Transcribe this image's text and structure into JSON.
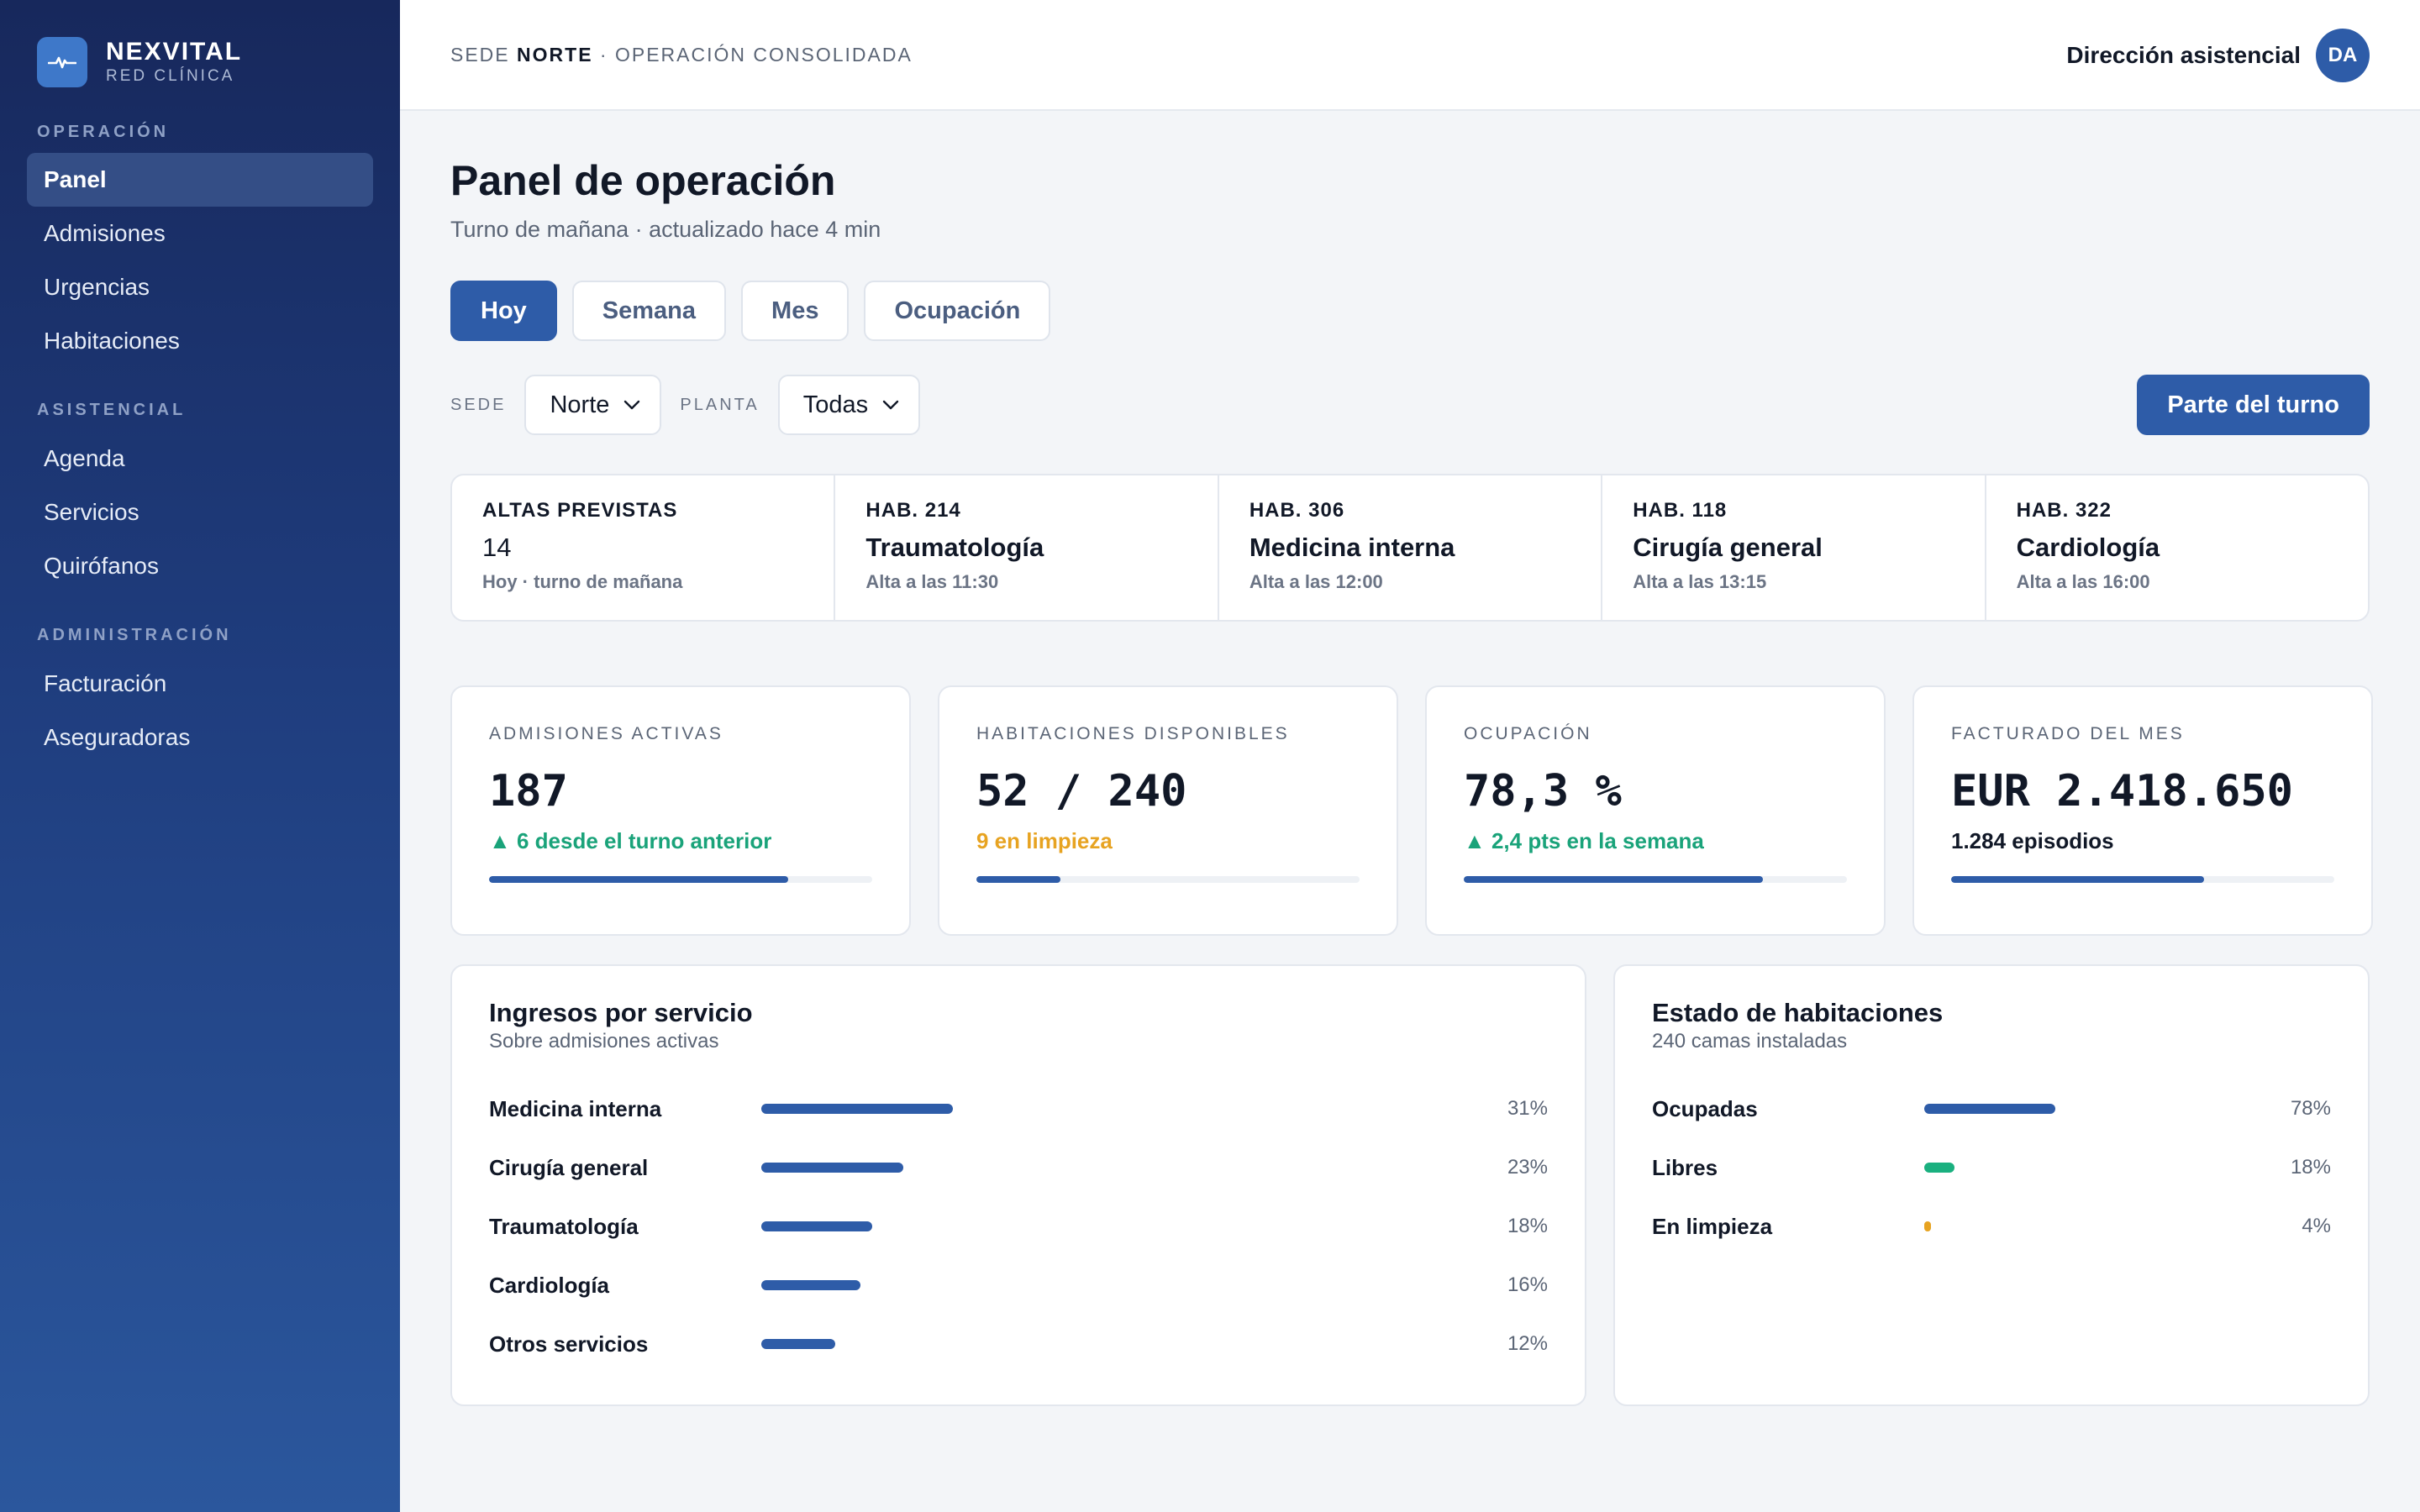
{
  "brand": {
    "name": "NEXVITAL",
    "sub": "RED CLÍNICA",
    "icon": "pulse-icon"
  },
  "sidebar": {
    "sections": [
      {
        "label": "OPERACIÓN",
        "items": [
          "Panel",
          "Admisiones",
          "Urgencias",
          "Habitaciones"
        ]
      },
      {
        "label": "ASISTENCIAL",
        "items": [
          "Agenda",
          "Servicios",
          "Quirófanos"
        ]
      },
      {
        "label": "ADMINISTRACIÓN",
        "items": [
          "Facturación",
          "Aseguradoras"
        ]
      }
    ],
    "active": "Panel"
  },
  "topbar": {
    "context_prefix": "SEDE",
    "context_site": "NORTE",
    "context_suffix": "· OPERACIÓN CONSOLIDADA",
    "role": "Dirección asistencial",
    "avatar": "DA"
  },
  "page": {
    "title": "Panel de operación",
    "subtitle": "Turno de mañana · actualizado hace 4 min"
  },
  "tabs": [
    {
      "label": "Hoy",
      "active": true
    },
    {
      "label": "Semana"
    },
    {
      "label": "Mes"
    },
    {
      "label": "Ocupación"
    }
  ],
  "filters": {
    "site_label": "SEDE",
    "site_value": "Norte",
    "floor_label": "PLANTA",
    "floor_value": "Todas",
    "action": "Parte del turno"
  },
  "discharges": {
    "summary": {
      "label": "ALTAS PREVISTAS",
      "value": "14",
      "note": "Hoy · turno de mañana"
    },
    "rooms": [
      {
        "room": "HAB. 214",
        "service": "Traumatología",
        "time": "Alta a las 11:30"
      },
      {
        "room": "HAB. 306",
        "service": "Medicina interna",
        "time": "Alta a las 12:00"
      },
      {
        "room": "HAB. 118",
        "service": "Cirugía general",
        "time": "Alta a las 13:15"
      },
      {
        "room": "HAB. 322",
        "service": "Cardiología",
        "time": "Alta a las 16:00"
      }
    ]
  },
  "kpis": [
    {
      "label": "ADMISIONES ACTIVAS",
      "value": "187",
      "delta": "▲ 6 desde el turno anterior",
      "delta_color": "#1aa37a",
      "progress": 0.78
    },
    {
      "label": "HABITACIONES DISPONIBLES",
      "value": "52 / 240",
      "delta": "9 en limpieza",
      "delta_color": "#e7a321",
      "progress": 0.22
    },
    {
      "label": "OCUPACIÓN",
      "value": "78,3 %",
      "delta": "▲ 2,4 pts en la semana",
      "delta_color": "#1aa37a",
      "progress": 0.78
    },
    {
      "label": "FACTURADO DEL MES",
      "value": "EUR 2.418.650",
      "delta": "1.284 episodios",
      "delta_color": "#111827",
      "progress": 0.66
    }
  ],
  "revenue": {
    "title": "Ingresos por servicio",
    "subtitle": "Sobre admisiones activas",
    "rows": [
      {
        "label": "Medicina interna",
        "pct": 31,
        "value": "31%"
      },
      {
        "label": "Cirugía general",
        "pct": 23,
        "value": "23%"
      },
      {
        "label": "Traumatología",
        "pct": 18,
        "value": "18%"
      },
      {
        "label": "Cardiología",
        "pct": 16,
        "value": "16%"
      },
      {
        "label": "Otros servicios",
        "pct": 12,
        "value": "12%"
      }
    ],
    "color": "#2e5ca8"
  },
  "rooms_state": {
    "title": "Estado de habitaciones",
    "subtitle": "240 camas instaladas",
    "rows": [
      {
        "label": "Ocupadas",
        "pct": 78,
        "value": "78%",
        "color": "#2e5ca8"
      },
      {
        "label": "Libres",
        "pct": 18,
        "value": "18%",
        "color": "#1ab07f"
      },
      {
        "label": "En limpieza",
        "pct": 4,
        "value": "4%",
        "color": "#e7a321"
      }
    ]
  }
}
